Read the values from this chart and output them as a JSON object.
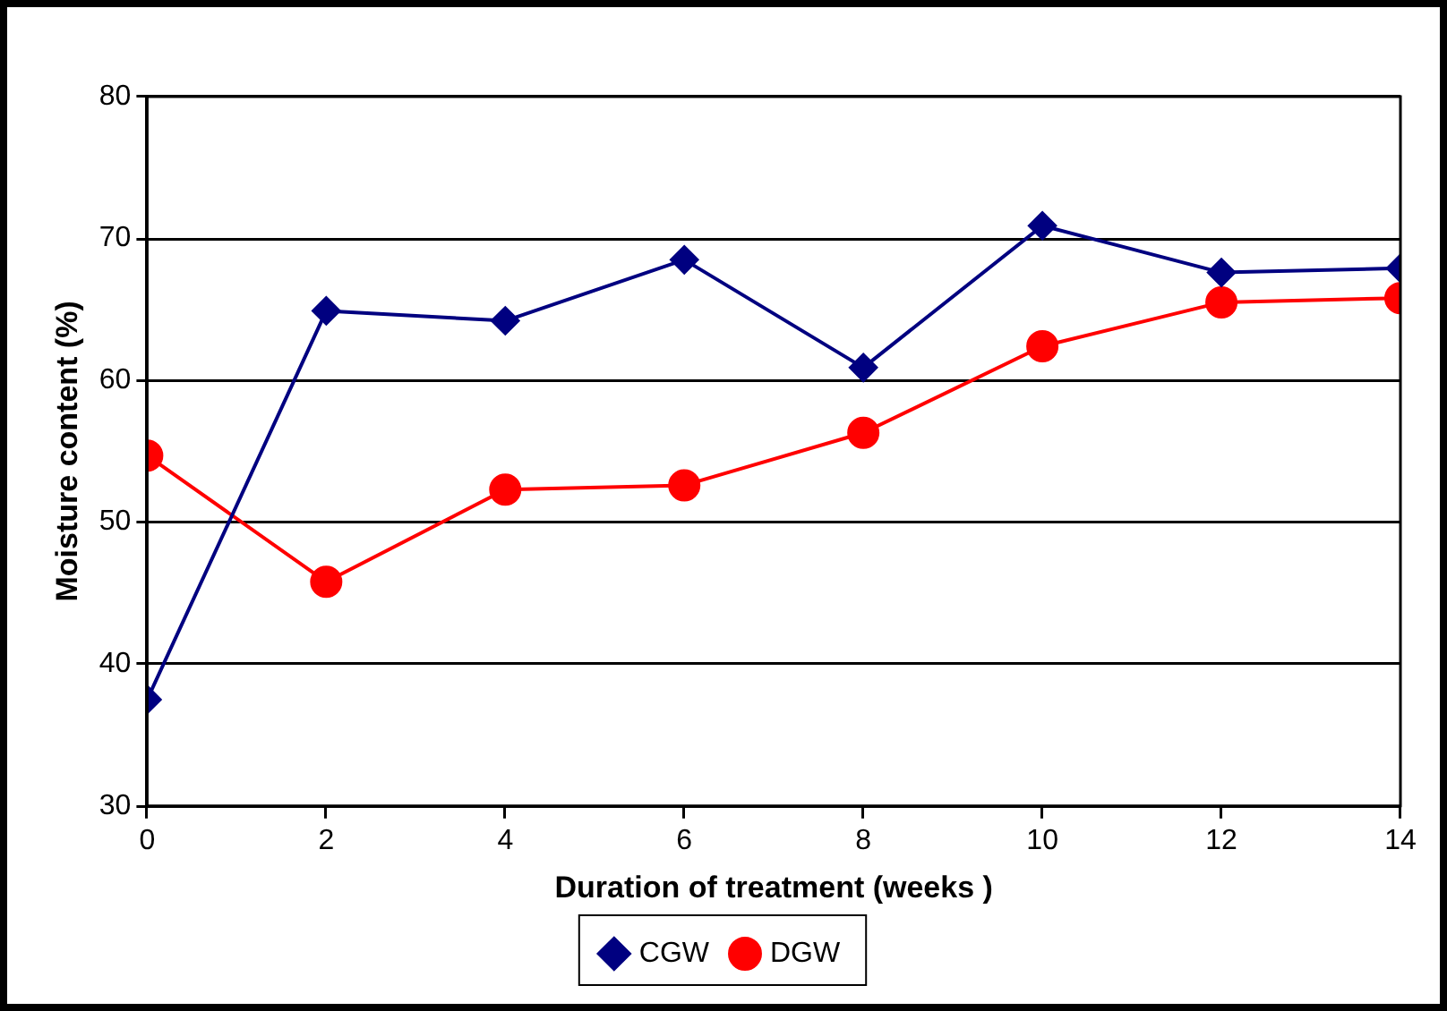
{
  "chart_data": {
    "type": "line",
    "xlabel": "Duration of treatment (weeks )",
    "ylabel": "Moisture content (%)",
    "x": [
      0,
      2,
      4,
      6,
      8,
      10,
      12,
      14
    ],
    "xlim": [
      0,
      14
    ],
    "xticks": [
      0,
      2,
      4,
      6,
      8,
      10,
      12,
      14
    ],
    "ylim": [
      30,
      80
    ],
    "yticks": [
      30,
      40,
      50,
      60,
      70,
      80
    ],
    "grid": "y",
    "legend": "bottom",
    "line_style": "solid",
    "series": [
      {
        "name": "CGW",
        "color": "#000080",
        "marker": "diamond",
        "values": [
          37.5,
          64.9,
          64.2,
          68.5,
          60.9,
          70.9,
          67.6,
          67.9
        ]
      },
      {
        "name": "DGW",
        "color": "#ff0000",
        "marker": "circle",
        "values": [
          54.7,
          45.8,
          52.3,
          52.6,
          56.3,
          62.4,
          65.5,
          65.8
        ]
      }
    ]
  }
}
